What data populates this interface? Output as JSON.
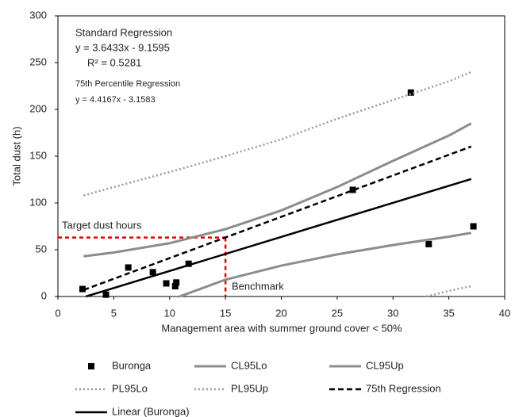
{
  "chart_data": {
    "type": "scatter",
    "y_label": "Total dust (h)",
    "x_label": "Management area with summer ground cover < 50%",
    "xlim": [
      0,
      40
    ],
    "xticks": [
      0,
      5,
      10,
      15,
      20,
      25,
      30,
      35,
      40
    ],
    "ylim": [
      0,
      300
    ],
    "yticks": [
      0,
      50,
      100,
      150,
      200,
      250,
      300
    ],
    "annotations": [
      "Standard Regression",
      "y = 3.6433x - 9.1595",
      "R² = 0.5281",
      "75th Percentile Regression",
      "y = 4.4167x  - 3.1583",
      "Target dust hours",
      "Benchmark"
    ],
    "target": {
      "x": 15,
      "y": 63,
      "color": "#e00000"
    },
    "series": [
      {
        "name": "Buronga",
        "style": "marker",
        "color": "#000000",
        "x": [
          2.2,
          4.3,
          6.3,
          8.5,
          9.7,
          10.5,
          10.6,
          11.7,
          26.4,
          31.6,
          33.2,
          37.2
        ],
        "values": [
          8,
          2,
          31,
          26,
          14,
          11,
          15,
          35,
          114,
          218,
          56,
          75
        ]
      },
      {
        "name": "CL95Lo",
        "style": "solid-thick",
        "color": "#8c8c8c",
        "x": [
          10.9,
          15,
          20,
          25,
          30,
          35,
          37
        ],
        "values": [
          0,
          18,
          33,
          45,
          55,
          64,
          68
        ]
      },
      {
        "name": "CL95Up",
        "style": "solid-thick",
        "color": "#8c8c8c",
        "x": [
          2.3,
          5,
          10,
          15,
          20,
          25,
          30,
          35,
          37
        ],
        "values": [
          43,
          47,
          57,
          72,
          92,
          117,
          145,
          172,
          185
        ]
      },
      {
        "name": "PL95Lo",
        "style": "dotted",
        "color": "#999999",
        "x": [
          33,
          35,
          37
        ],
        "values": [
          0,
          6,
          11
        ]
      },
      {
        "name": "PL95Up",
        "style": "dotted",
        "color": "#999999",
        "x": [
          2.3,
          5,
          10,
          15,
          20,
          25,
          30,
          35,
          37
        ],
        "values": [
          108,
          117,
          133,
          150,
          168,
          190,
          210,
          230,
          240
        ]
      },
      {
        "name": "75th Regression",
        "style": "dashed",
        "color": "#000000",
        "x": [
          2.3,
          37
        ],
        "values": [
          7,
          160.3
        ]
      },
      {
        "name": "Linear (Buronga)",
        "style": "solid",
        "color": "#000000",
        "x": [
          2.5,
          37
        ],
        "values": [
          0,
          125.6
        ]
      }
    ]
  }
}
